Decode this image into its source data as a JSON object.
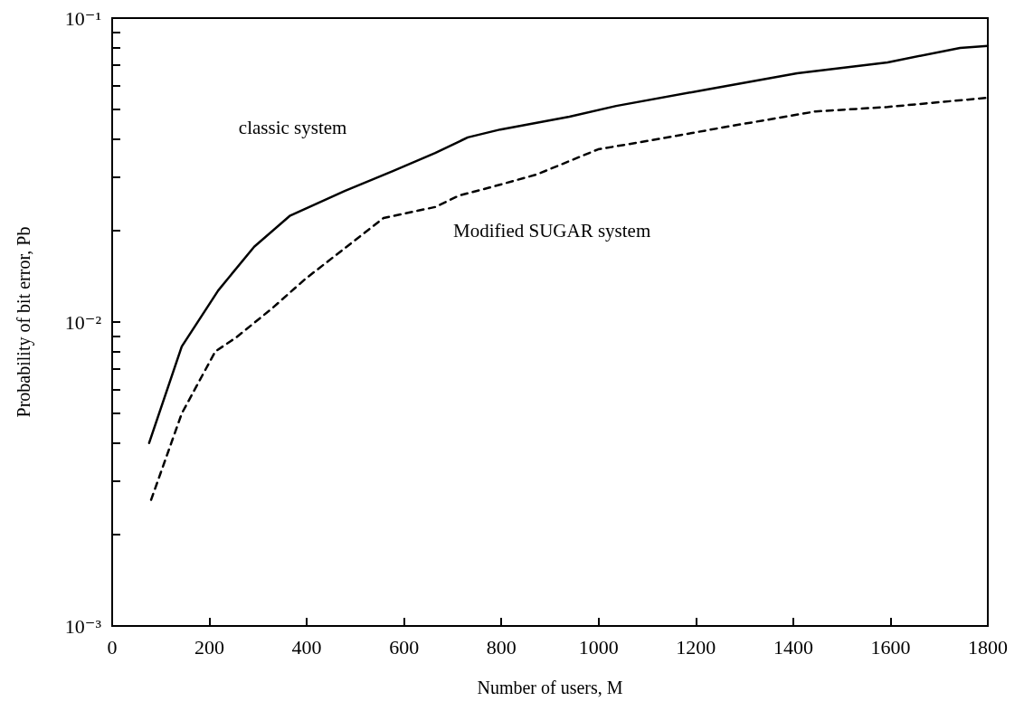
{
  "chart_data": {
    "type": "line",
    "xlabel": "Number of users, M",
    "ylabel": "Probability of bit error, Pb",
    "series": [
      {
        "name": "classic system",
        "color": "#000000",
        "line_style": "solid",
        "x": [
          76,
          143,
          218,
          292,
          366,
          478,
          577,
          664,
          731,
          798,
          940,
          1036,
          1222,
          1408,
          1594,
          1743,
          1800
        ],
        "values": [
          0.004,
          0.0083,
          0.0127,
          0.0177,
          0.0224,
          0.027,
          0.0314,
          0.036,
          0.0405,
          0.043,
          0.0474,
          0.0514,
          0.0582,
          0.0658,
          0.0715,
          0.0798,
          0.081
        ]
      },
      {
        "name": "Modified SUGAR system",
        "color": "#000000",
        "line_style": "dashed",
        "x": [
          80,
          143,
          212,
          255,
          329,
          398,
          558,
          664,
          714,
          776,
          873,
          999,
          1111,
          1274,
          1446,
          1594,
          1800
        ],
        "values": [
          0.0026,
          0.005,
          0.008,
          0.0089,
          0.0111,
          0.0139,
          0.022,
          0.0239,
          0.0261,
          0.0277,
          0.0306,
          0.037,
          0.0397,
          0.0442,
          0.0493,
          0.051,
          0.0547
        ]
      }
    ],
    "log": "y",
    "marker": "none",
    "grid": false,
    "xlim": [
      0,
      1800
    ],
    "xticks": [
      0,
      200,
      400,
      600,
      800,
      1000,
      1200,
      1400,
      1600,
      1800
    ],
    "ylim": [
      0.001,
      0.1
    ],
    "yticks": [
      {
        "value": 0.001,
        "label": "10⁻³"
      },
      {
        "value": 0.002,
        "label": null
      },
      {
        "value": 0.003,
        "label": null
      },
      {
        "value": 0.004,
        "label": null
      },
      {
        "value": 0.005,
        "label": null
      },
      {
        "value": 0.006,
        "label": null
      },
      {
        "value": 0.007,
        "label": null
      },
      {
        "value": 0.008,
        "label": null
      },
      {
        "value": 0.009,
        "label": null
      },
      {
        "value": 0.01,
        "label": "10⁻²"
      },
      {
        "value": 0.02,
        "label": null
      },
      {
        "value": 0.03,
        "label": null
      },
      {
        "value": 0.04,
        "label": null
      },
      {
        "value": 0.05,
        "label": null
      },
      {
        "value": 0.06,
        "label": null
      },
      {
        "value": 0.07,
        "label": null
      },
      {
        "value": 0.08,
        "label": null
      },
      {
        "value": 0.09,
        "label": null
      },
      {
        "value": 0.1,
        "label": "10⁻¹"
      }
    ]
  }
}
